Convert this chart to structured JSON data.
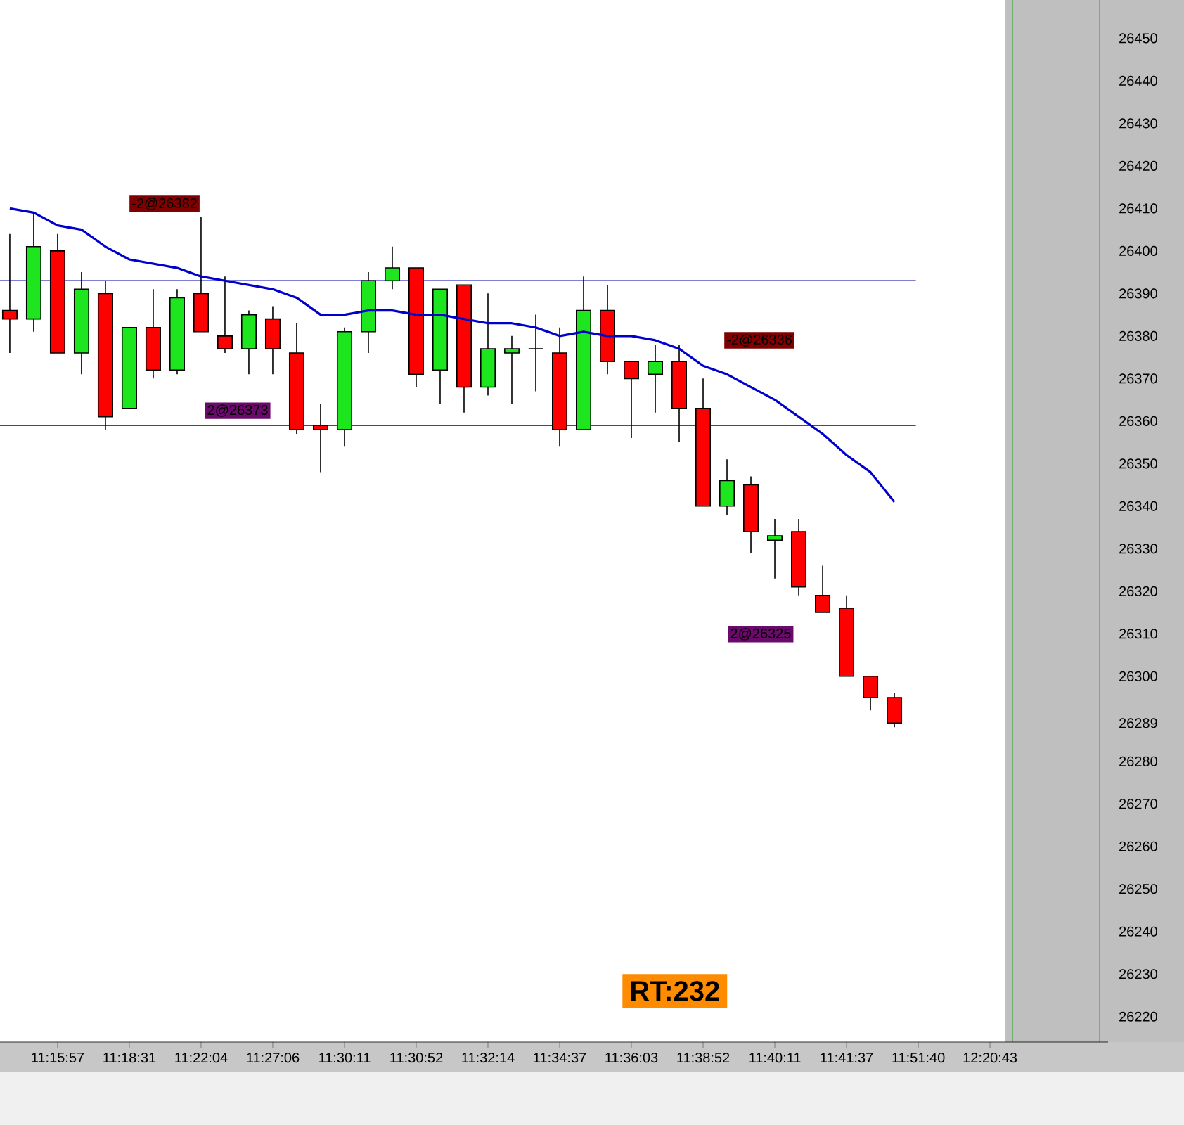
{
  "chart_data": {
    "type": "candlestick",
    "categories": [
      null,
      null,
      "11:15:57",
      null,
      null,
      "11:18:31",
      null,
      null,
      "11:22:04",
      null,
      null,
      "11:27:06",
      null,
      null,
      "11:30:11",
      null,
      null,
      "11:30:52",
      null,
      null,
      "11:32:14",
      null,
      null,
      "11:34:37",
      null,
      null,
      "11:36:03",
      null,
      null,
      "11:38:52",
      null,
      null,
      "11:40:11",
      null,
      null,
      "11:41:37",
      null,
      null,
      "11:51:40",
      null,
      null,
      "12:20:43"
    ],
    "ohlc": [
      [
        26386,
        26404,
        26376,
        26384
      ],
      [
        26384,
        26409,
        26381,
        26401
      ],
      [
        26400,
        26404,
        26376,
        26376
      ],
      [
        26376,
        26395,
        26371,
        26391
      ],
      [
        26390,
        26393,
        26358,
        26361
      ],
      [
        26363,
        26382,
        26363,
        26382
      ],
      [
        26382,
        26391,
        26370,
        26372
      ],
      [
        26372,
        26391,
        26371,
        26389
      ],
      [
        26390,
        26408,
        26381,
        26381
      ],
      [
        26380,
        26394,
        26376,
        26377
      ],
      [
        26377,
        26386,
        26371,
        26385
      ],
      [
        26384,
        26387,
        26371,
        26377
      ],
      [
        26376,
        26383,
        26357,
        26358
      ],
      [
        26359,
        26364,
        26348,
        26358
      ],
      [
        26358,
        26382,
        26354,
        26381
      ],
      [
        26381,
        26395,
        26376,
        26393
      ],
      [
        26393,
        26401,
        26391,
        26396
      ],
      [
        26396,
        26396,
        26368,
        26371
      ],
      [
        26372,
        26391,
        26364,
        26391
      ],
      [
        26392,
        26392,
        26362,
        26368
      ],
      [
        26368,
        26390,
        26366,
        26377
      ],
      [
        26376,
        26380,
        26364,
        26377
      ],
      [
        26377,
        26385,
        26367,
        26377
      ],
      [
        26376,
        26382,
        26354,
        26358
      ],
      [
        26358,
        26394,
        26358,
        26386
      ],
      [
        26386,
        26392,
        26371,
        26374
      ],
      [
        26374,
        26374,
        26356,
        26370
      ],
      [
        26371,
        26378,
        26362,
        26374
      ],
      [
        26374,
        26378,
        26355,
        26363
      ],
      [
        26363,
        26370,
        26340,
        26340
      ],
      [
        26340,
        26351,
        26338,
        26346
      ],
      [
        26345,
        26347,
        26329,
        26334
      ],
      [
        26332,
        26337,
        26323,
        26333
      ],
      [
        26334,
        26337,
        26319,
        26321
      ],
      [
        26319,
        26326,
        26315,
        26315
      ],
      [
        26316,
        26319,
        26300,
        26300
      ],
      [
        26300,
        26300,
        26292,
        26295
      ],
      [
        26295,
        26296,
        26288,
        26289
      ],
      null,
      null,
      null,
      null
    ],
    "colors": [
      "#ff0000",
      "#1ee61e",
      "#ff0000",
      "#1ee61e",
      "#ff0000",
      "#1ee61e",
      "#ff0000",
      "#1ee61e",
      "#ff0000",
      "#ff0000",
      "#1ee61e",
      "#ff0000",
      "#ff0000",
      "#ff0000",
      "#1ee61e",
      "#1ee61e",
      "#1ee61e",
      "#ff0000",
      "#1ee61e",
      "#ff0000",
      "#1ee61e",
      "#1ee61e",
      "#000000",
      "#ff0000",
      "#1ee61e",
      "#ff0000",
      "#ff0000",
      "#1ee61e",
      "#ff0000",
      "#ff0000",
      "#1ee61e",
      "#ff0000",
      "#1ee61e",
      "#ff0000",
      "#ff0000",
      "#ff0000",
      "#ff0000",
      "#ff0000",
      null,
      null,
      null,
      null
    ],
    "series": [
      {
        "type": "line",
        "color": "#0000cc",
        "values": [
          26410,
          26409,
          26406,
          26405,
          26401,
          26398,
          26397,
          26396,
          26394,
          26393,
          26392,
          26391,
          26389,
          26385,
          26385,
          26386,
          26386,
          26385,
          26385,
          26384,
          26383,
          26383,
          26382,
          26380,
          26381,
          26380,
          26380,
          26379,
          26377,
          26373,
          26371,
          26368,
          26365,
          26361,
          26357,
          26352,
          26348,
          26341,
          null,
          null,
          null,
          null
        ]
      }
    ],
    "ylim": [
      26214,
      26459
    ],
    "yticks": [
      26220,
      26230,
      26240,
      26250,
      26260,
      26270,
      26280,
      26289,
      26300,
      26310,
      26320,
      26330,
      26340,
      26350,
      26360,
      26370,
      26380,
      26390,
      26400,
      26410,
      26420,
      26430,
      26440,
      26450
    ],
    "ref_lines": [
      {
        "axis": "y",
        "value": 26393,
        "color": "#0000aa"
      },
      {
        "axis": "y",
        "value": 26359,
        "color": "#0000aa"
      }
    ],
    "annotations": [
      "-2@26382",
      "2@26373",
      "-2@26336",
      "2@26325",
      "RT:232"
    ]
  }
}
